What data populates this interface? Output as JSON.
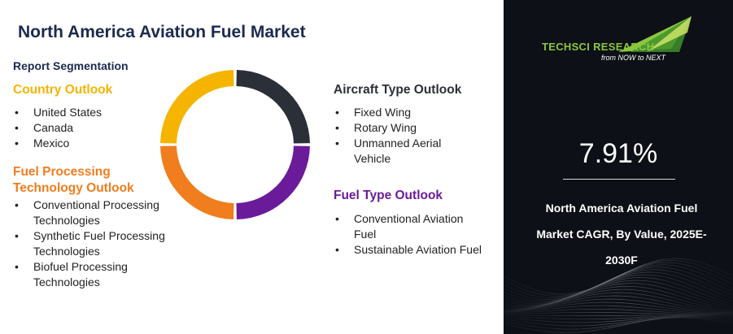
{
  "title": "North America Aviation Fuel Market",
  "segmentation_label": "Report Segmentation",
  "sections": {
    "country": {
      "title": "Country Outlook",
      "items": [
        "United States",
        "Canada",
        "Mexico"
      ]
    },
    "fuel_processing": {
      "title_line1": "Fuel Processing",
      "title_line2": "Technology Outlook",
      "items": [
        [
          "Conventional Processing",
          "Technologies"
        ],
        [
          "Synthetic Fuel Processing",
          "Technologies"
        ],
        [
          "Biofuel Processing",
          "Technologies"
        ]
      ]
    },
    "aircraft": {
      "title": "Aircraft Type Outlook",
      "items": [
        [
          "Fixed Wing"
        ],
        [
          "Rotary Wing"
        ],
        [
          "Unmanned Aerial",
          "Vehicle"
        ]
      ]
    },
    "fuel_type": {
      "title": "Fuel Type Outlook",
      "items": [
        [
          "Conventional Aviation",
          "Fuel"
        ],
        [
          "Sustainable Aviation Fuel"
        ]
      ]
    }
  },
  "colors": {
    "country": "#f5b400",
    "fuel_processing": "#f07d1e",
    "aircraft": "#2b2f38",
    "fuel_type": "#6a1b9a",
    "title": "#1b2a4e",
    "logo_green": "#8cc63f",
    "panel_bg": "#0d1016"
  },
  "donut": {
    "segments": [
      {
        "name": "aircraft",
        "color": "#2b2f38"
      },
      {
        "name": "fuel_type",
        "color": "#6a1b9a"
      },
      {
        "name": "fuel_processing",
        "color": "#f07d1e"
      },
      {
        "name": "country",
        "color": "#f5b400"
      }
    ]
  },
  "logo": {
    "name": "TECHSCI RESEARCH",
    "tagline": "from NOW to NEXT"
  },
  "cagr": {
    "value": "7.91%",
    "label_lines": [
      "North America Aviation Fuel",
      "Market CAGR, By Value, 2025E-",
      "2030F"
    ]
  }
}
